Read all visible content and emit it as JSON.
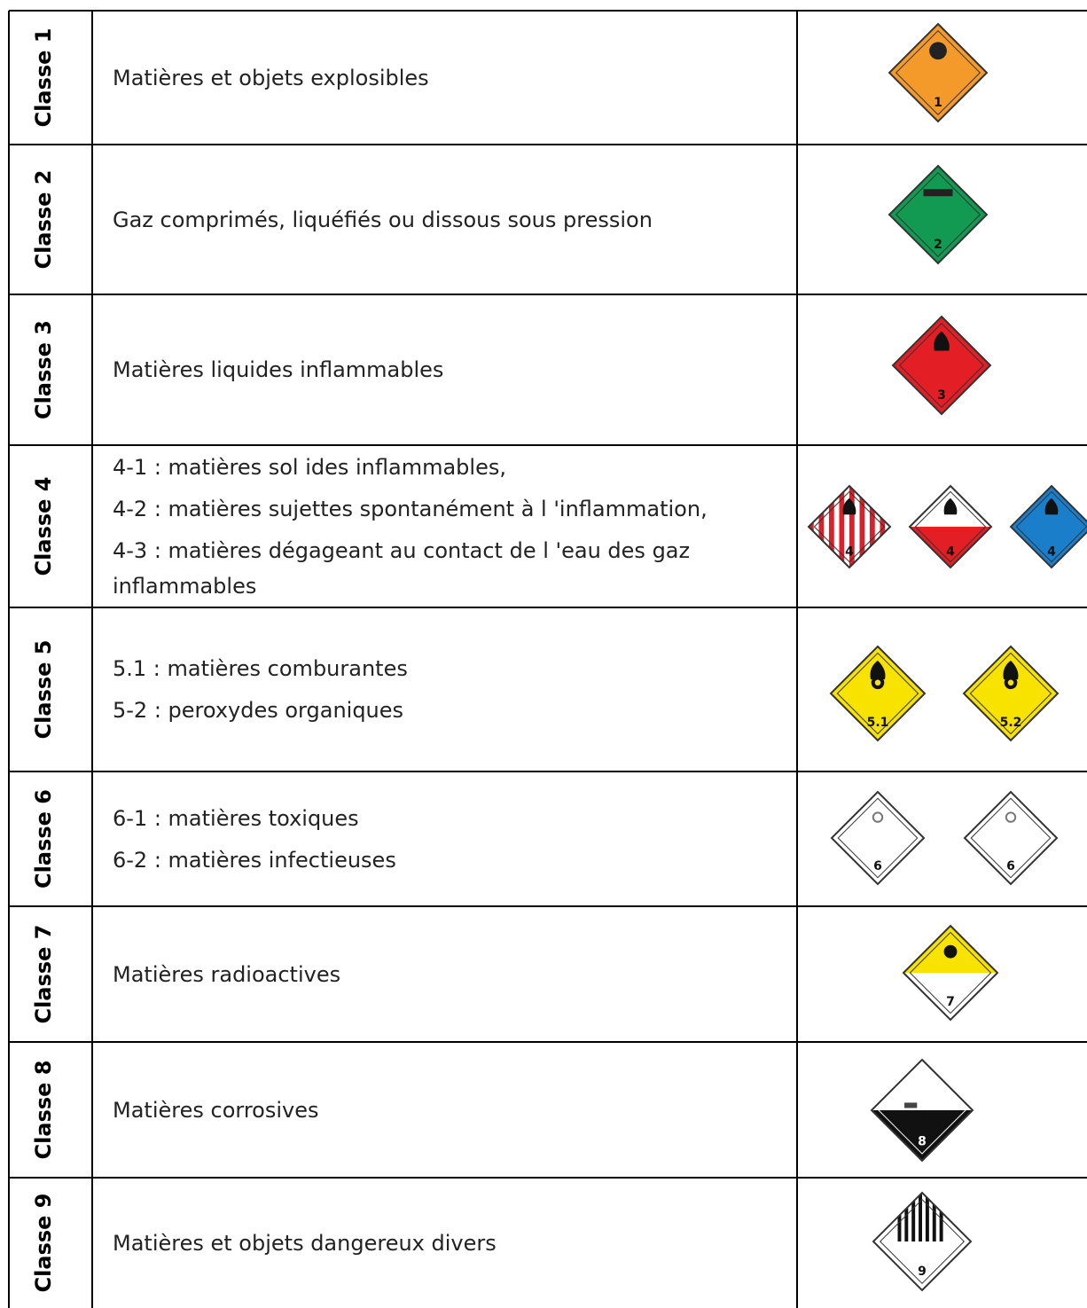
{
  "table": {
    "rows": [
      {
        "class": "Classe 1",
        "lines": [
          "Matières et objets explosibles"
        ],
        "placards": [
          {
            "label": "1"
          }
        ]
      },
      {
        "class": "Classe 2",
        "lines": [
          "Gaz comprimés, liquéfiés ou dissous sous pression"
        ],
        "placards": [
          {
            "label": "2"
          }
        ]
      },
      {
        "class": "Classe 3",
        "lines": [
          "Matières liquides inflammables"
        ],
        "placards": [
          {
            "label": "3"
          }
        ]
      },
      {
        "class": "Classe 4",
        "lines": [
          "4-1 : matières sol ides inflammables,",
          "4-2 :  matières sujettes spontanément à l 'inflammation,",
          "4-3 :  matières dégageant au contact de l 'eau des gaz inflammables"
        ],
        "placards": [
          {
            "label": "4"
          },
          {
            "label": "4"
          },
          {
            "label": "4"
          }
        ]
      },
      {
        "class": "Classe 5",
        "lines": [
          "5.1 : matières comburantes",
          "5-2 : peroxydes organiques"
        ],
        "placards": [
          {
            "label": "5.1"
          },
          {
            "label": "5.2"
          }
        ]
      },
      {
        "class": "Classe 6",
        "lines": [
          "6-1 : matières toxiques",
          "6-2 : matières infectieuses"
        ],
        "placards": [
          {
            "label": "6"
          },
          {
            "label": "6"
          }
        ]
      },
      {
        "class": "Classe 7",
        "lines": [
          "Matières radioactives"
        ],
        "placards": [
          {
            "label": "7"
          }
        ]
      },
      {
        "class": "Classe 8",
        "lines": [
          "Matières corrosives"
        ],
        "placards": [
          {
            "label": "8"
          }
        ]
      },
      {
        "class": "Classe 9",
        "lines": [
          "Matières et objets dangereux divers"
        ],
        "placards": [
          {
            "label": "9"
          }
        ]
      }
    ]
  }
}
